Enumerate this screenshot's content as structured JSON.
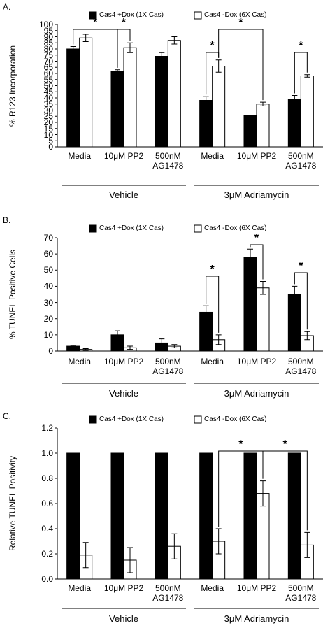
{
  "chart_data": [
    {
      "type": "bar",
      "panel": "A.",
      "ylabel": "% R123 Incorporation",
      "categories": [
        "Media",
        "10μM PP2",
        "500nM\nAG1478",
        "Media",
        "10μM PP2",
        "500nM\nAG1478"
      ],
      "groups": [
        "Vehicle",
        "3μM Adriamycin"
      ],
      "series": [
        {
          "name": "Cas4 +Dox (1X Cas)",
          "color": "#000000",
          "values": [
            80,
            62,
            74,
            38,
            26,
            39
          ],
          "errors": [
            2,
            1,
            3,
            3,
            0,
            3
          ]
        },
        {
          "name": "Cas4 -Dox (6X Cas)",
          "color": "#ffffff",
          "values": [
            89,
            81,
            87,
            66,
            35,
            58
          ],
          "errors": [
            3,
            4,
            3,
            5,
            1.5,
            1
          ]
        }
      ],
      "ylim": [
        0,
        100
      ],
      "yticks": [
        0,
        5,
        10,
        15,
        20,
        25,
        30,
        35,
        40,
        45,
        50,
        55,
        60,
        65,
        70,
        75,
        80,
        85,
        90,
        95,
        100
      ],
      "annotations": [
        "*",
        "*",
        "*",
        "*",
        "*"
      ]
    },
    {
      "type": "bar",
      "panel": "B.",
      "ylabel": "% TUNEL Positive Cells",
      "categories": [
        "Media",
        "10μM PP2",
        "500nM\nAG1478",
        "Media",
        "10μM PP2",
        "500nM\nAG1478"
      ],
      "groups": [
        "Vehicle",
        "3μM Adriamycin"
      ],
      "series": [
        {
          "name": "Cas4 +Dox (1X Cas)",
          "color": "#000000",
          "values": [
            3,
            10,
            5,
            24,
            58,
            35
          ],
          "errors": [
            0.5,
            2.5,
            2.5,
            4,
            5,
            5
          ]
        },
        {
          "name": "Cas4 -Dox (6X Cas)",
          "color": "#ffffff",
          "values": [
            1,
            2,
            3,
            7,
            39,
            9.5
          ],
          "errors": [
            0.5,
            1,
            1,
            3,
            4,
            2.5
          ]
        }
      ],
      "ylim": [
        0,
        70
      ],
      "yticks": [
        0,
        10,
        20,
        30,
        40,
        50,
        60,
        70
      ],
      "annotations": [
        "*",
        "*",
        "*"
      ]
    },
    {
      "type": "bar",
      "panel": "C.",
      "ylabel": "Relative TUNEL Positivity",
      "categories": [
        "Media",
        "10μM PP2",
        "500nM\nAG1478",
        "Media",
        "10μM PP2",
        "500nM\nAG1478"
      ],
      "groups": [
        "Vehicle",
        "3μM Adriamycin"
      ],
      "series": [
        {
          "name": "Cas4 +Dox (1X Cas)",
          "color": "#000000",
          "values": [
            1,
            1,
            1,
            1,
            1,
            1
          ]
        },
        {
          "name": "Cas4 -Dox (6X Cas)",
          "color": "#ffffff",
          "values": [
            0.19,
            0.15,
            0.26,
            0.3,
            0.68,
            0.27
          ],
          "errors": [
            0.1,
            0.1,
            0.1,
            0.1,
            0.1,
            0.1
          ]
        }
      ],
      "ylim": [
        0,
        1.2
      ],
      "yticks": [
        {
          "value": 0,
          "label": "0.0"
        },
        0.2,
        0.4,
        0.6,
        0.8,
        {
          "value": 1,
          "label": "1.0"
        },
        1.2
      ],
      "annotations": [
        "*",
        "*"
      ]
    }
  ]
}
